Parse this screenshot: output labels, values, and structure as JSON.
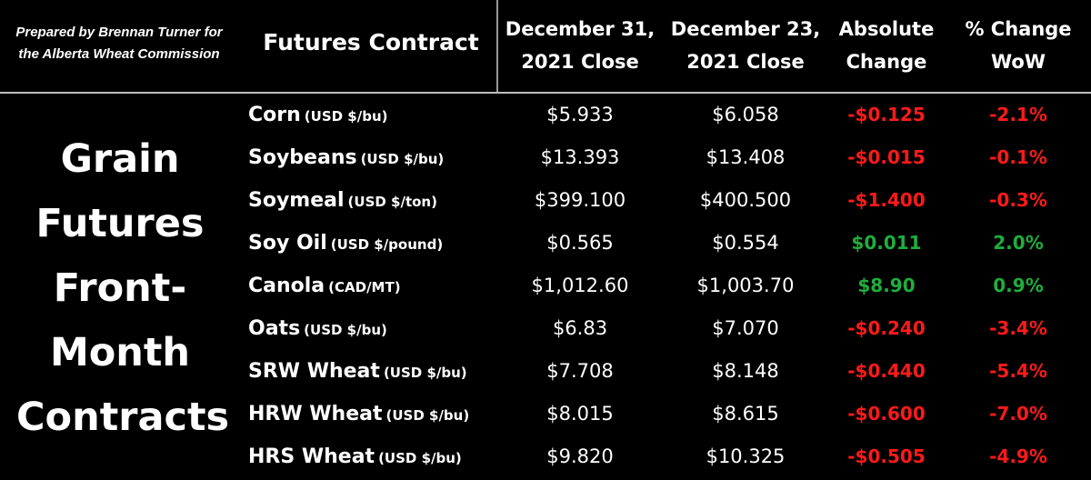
{
  "credit": {
    "line1": "Prepared by Brennan Turner for",
    "line2": "the Alberta Wheat Commission"
  },
  "header": {
    "contract": "Futures Contract",
    "dec31_line1": "December 31,",
    "dec31_line2": "2021 Close",
    "dec23_line1": "December 23,",
    "dec23_line2": "2021 Close",
    "abs_line1": "Absolute",
    "abs_line2": "Change",
    "pct_line1": "% Change",
    "pct_line2": "WoW"
  },
  "side_title": [
    "Grain",
    "Futures",
    "Front-",
    "Month",
    "Contracts"
  ],
  "colors": {
    "negative": "#ff1a1a",
    "positive": "#1fae3c",
    "background": "#000000",
    "text": "#ffffff"
  },
  "rows": [
    {
      "name": "Corn",
      "unit": "(USD $/bu)",
      "dec31": "$5.933",
      "dec23": "$6.058",
      "abs": "-$0.125",
      "pct": "-2.1%",
      "direction": "negative"
    },
    {
      "name": "Soybeans",
      "unit": "(USD $/bu)",
      "dec31": "$13.393",
      "dec23": "$13.408",
      "abs": "-$0.015",
      "pct": "-0.1%",
      "direction": "negative"
    },
    {
      "name": "Soymeal",
      "unit": "(USD $/ton)",
      "dec31": "$399.100",
      "dec23": "$400.500",
      "abs": "-$1.400",
      "pct": "-0.3%",
      "direction": "negative"
    },
    {
      "name": "Soy Oil",
      "unit": "(USD $/pound)",
      "dec31": "$0.565",
      "dec23": "$0.554",
      "abs": "$0.011",
      "pct": "2.0%",
      "direction": "positive"
    },
    {
      "name": "Canola",
      "unit": "(CAD/MT)",
      "dec31": "$1,012.60",
      "dec23": "$1,003.70",
      "abs": "$8.90",
      "pct": "0.9%",
      "direction": "positive"
    },
    {
      "name": "Oats",
      "unit": "(USD $/bu)",
      "dec31": "$6.83",
      "dec23": "$7.070",
      "abs": "-$0.240",
      "pct": "-3.4%",
      "direction": "negative"
    },
    {
      "name": "SRW Wheat",
      "unit": "(USD $/bu)",
      "dec31": "$7.708",
      "dec23": "$8.148",
      "abs": "-$0.440",
      "pct": "-5.4%",
      "direction": "negative"
    },
    {
      "name": "HRW Wheat",
      "unit": "(USD $/bu)",
      "dec31": "$8.015",
      "dec23": "$8.615",
      "abs": "-$0.600",
      "pct": "-7.0%",
      "direction": "negative"
    },
    {
      "name": "HRS Wheat",
      "unit": "(USD $/bu)",
      "dec31": "$9.820",
      "dec23": "$10.325",
      "abs": "-$0.505",
      "pct": "-4.9%",
      "direction": "negative"
    }
  ]
}
